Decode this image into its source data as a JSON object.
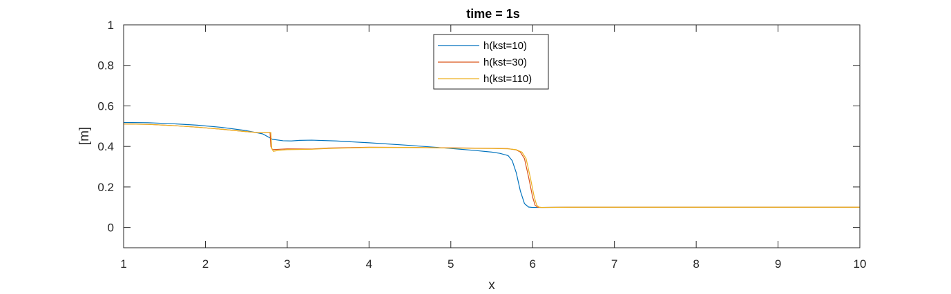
{
  "chart_data": {
    "type": "line",
    "title": "time = 1s",
    "xlabel": "x",
    "ylabel": "[m]",
    "xlim": [
      1,
      10
    ],
    "ylim": [
      -0.1,
      1
    ],
    "xticks": [
      1,
      2,
      3,
      4,
      5,
      6,
      7,
      8,
      9,
      10
    ],
    "yticks": [
      0,
      0.2,
      0.4,
      0.6,
      0.8,
      1
    ],
    "grid": false,
    "legend_position": "top-center",
    "series": [
      {
        "name": "h(kst=10)",
        "color": "#0072BD",
        "x": [
          1.0,
          1.3,
          1.6,
          1.9,
          2.2,
          2.5,
          2.7,
          2.82,
          2.95,
          3.05,
          3.15,
          3.3,
          3.6,
          4.0,
          4.5,
          5.0,
          5.3,
          5.5,
          5.6,
          5.7,
          5.75,
          5.8,
          5.85,
          5.9,
          5.95,
          6.0,
          6.1,
          6.5,
          7.0,
          8.0,
          9.0,
          10.0
        ],
        "y": [
          0.518,
          0.517,
          0.512,
          0.505,
          0.494,
          0.478,
          0.462,
          0.435,
          0.428,
          0.427,
          0.43,
          0.431,
          0.427,
          0.418,
          0.405,
          0.39,
          0.38,
          0.372,
          0.366,
          0.355,
          0.33,
          0.27,
          0.18,
          0.118,
          0.101,
          0.099,
          0.099,
          0.1,
          0.1,
          0.1,
          0.1,
          0.1
        ]
      },
      {
        "name": "h(kst=30)",
        "color": "#D95319",
        "x": [
          1.0,
          1.3,
          1.6,
          1.9,
          2.2,
          2.5,
          2.65,
          2.79,
          2.8,
          2.82,
          2.9,
          3.0,
          3.3,
          3.5,
          4.0,
          4.5,
          5.0,
          5.5,
          5.7,
          5.8,
          5.85,
          5.9,
          5.95,
          6.0,
          6.03,
          6.06,
          6.1,
          6.5,
          7.0,
          8.0,
          9.0,
          10.0
        ],
        "y": [
          0.511,
          0.509,
          0.503,
          0.495,
          0.485,
          0.473,
          0.468,
          0.469,
          0.4,
          0.384,
          0.386,
          0.388,
          0.387,
          0.392,
          0.396,
          0.395,
          0.393,
          0.391,
          0.389,
          0.383,
          0.372,
          0.34,
          0.25,
          0.15,
          0.11,
          0.1,
          0.099,
          0.1,
          0.1,
          0.1,
          0.1,
          0.1
        ]
      },
      {
        "name": "h(kst=110)",
        "color": "#EDB120",
        "x": [
          1.0,
          1.3,
          1.6,
          1.9,
          2.2,
          2.5,
          2.65,
          2.8,
          2.81,
          2.83,
          2.9,
          3.0,
          3.3,
          3.5,
          4.0,
          4.5,
          5.0,
          5.5,
          5.7,
          5.8,
          5.87,
          5.92,
          5.97,
          6.02,
          6.05,
          6.08,
          6.12,
          6.5,
          7.0,
          8.0,
          9.0,
          10.0
        ],
        "y": [
          0.511,
          0.509,
          0.503,
          0.495,
          0.485,
          0.473,
          0.468,
          0.469,
          0.39,
          0.376,
          0.381,
          0.384,
          0.386,
          0.39,
          0.395,
          0.395,
          0.392,
          0.39,
          0.388,
          0.384,
          0.372,
          0.34,
          0.25,
          0.15,
          0.11,
          0.1,
          0.099,
          0.1,
          0.1,
          0.1,
          0.1,
          0.1
        ]
      }
    ]
  }
}
